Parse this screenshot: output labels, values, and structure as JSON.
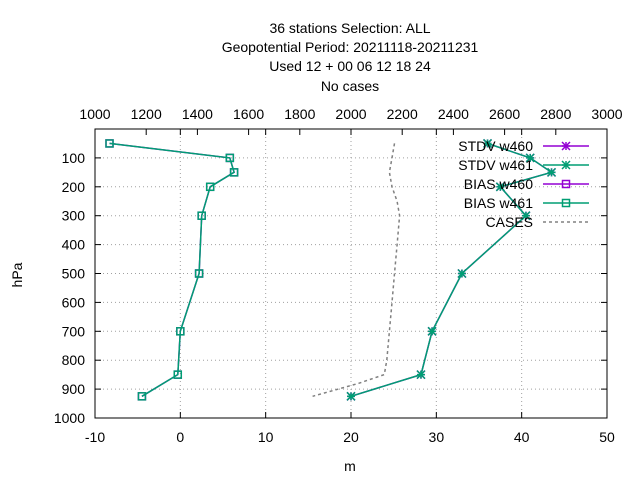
{
  "chart_data": {
    "type": "line",
    "title_lines": [
      "36 stations Selection: ALL",
      "Geopotential  Period: 20211118-20211231",
      "Used  12  + 00 06 12 18 24",
      "No cases"
    ],
    "xlabel": "m",
    "ylabel": "hPa",
    "xlim": [
      -10,
      50
    ],
    "x2lim": [
      1000,
      3000
    ],
    "ylim": [
      1000,
      0
    ],
    "x_ticks": [
      "-10",
      "0",
      "10",
      "20",
      "30",
      "40",
      "50"
    ],
    "x_tick_values": [
      -10,
      0,
      10,
      20,
      30,
      40,
      50
    ],
    "x2_ticks": [
      "1000",
      "1200",
      "1400",
      "1600",
      "1800",
      "2000",
      "2200",
      "2400",
      "2600",
      "2800",
      "3000"
    ],
    "x2_tick_values": [
      1000,
      1200,
      1400,
      1600,
      1800,
      2000,
      2200,
      2400,
      2600,
      2800,
      3000
    ],
    "y_ticks": [
      "100",
      "200",
      "300",
      "400",
      "500",
      "600",
      "700",
      "800",
      "900",
      "1000"
    ],
    "y_tick_values": [
      100,
      200,
      300,
      400,
      500,
      600,
      700,
      800,
      900,
      1000
    ],
    "grid": true,
    "legend_position": "top-right",
    "series": [
      {
        "name": "STDV w460",
        "axis": "x1",
        "color": "#9400d3",
        "marker": "star",
        "dash": false,
        "points": [
          [
            36.0,
            50
          ],
          [
            41.0,
            100
          ],
          [
            43.5,
            150
          ],
          [
            37.5,
            200
          ],
          [
            40.5,
            300
          ],
          [
            33.0,
            500
          ],
          [
            29.5,
            700
          ],
          [
            28.2,
            850
          ],
          [
            20.0,
            925
          ]
        ]
      },
      {
        "name": "STDV w461",
        "axis": "x1",
        "color": "#009e73",
        "marker": "star",
        "dash": false,
        "points": [
          [
            36.0,
            50
          ],
          [
            41.0,
            100
          ],
          [
            43.5,
            150
          ],
          [
            37.5,
            200
          ],
          [
            40.5,
            300
          ],
          [
            33.0,
            500
          ],
          [
            29.5,
            700
          ],
          [
            28.2,
            850
          ],
          [
            20.0,
            925
          ]
        ]
      },
      {
        "name": "BIAS w460",
        "axis": "x1",
        "color": "#9400d3",
        "marker": "square",
        "dash": false,
        "points": [
          [
            -8.3,
            50
          ],
          [
            5.8,
            100
          ],
          [
            6.3,
            150
          ],
          [
            3.5,
            200
          ],
          [
            2.5,
            300
          ],
          [
            2.2,
            500
          ],
          [
            0.0,
            700
          ],
          [
            -0.3,
            850
          ],
          [
            -4.5,
            925
          ]
        ]
      },
      {
        "name": "BIAS w461",
        "axis": "x1",
        "color": "#009e73",
        "marker": "square",
        "dash": false,
        "points": [
          [
            -8.3,
            50
          ],
          [
            5.8,
            100
          ],
          [
            6.3,
            150
          ],
          [
            3.5,
            200
          ],
          [
            2.5,
            300
          ],
          [
            2.2,
            500
          ],
          [
            0.0,
            700
          ],
          [
            -0.3,
            850
          ],
          [
            -4.5,
            925
          ]
        ]
      },
      {
        "name": "CASES",
        "axis": "x2",
        "color": "#808080",
        "marker": "none",
        "dash": true,
        "points": [
          [
            2170,
            50
          ],
          [
            2160,
            100
          ],
          [
            2150,
            150
          ],
          [
            2160,
            200
          ],
          [
            2180,
            250
          ],
          [
            2190,
            300
          ],
          [
            2180,
            400
          ],
          [
            2170,
            500
          ],
          [
            2160,
            600
          ],
          [
            2150,
            700
          ],
          [
            2140,
            800
          ],
          [
            2130,
            850
          ],
          [
            2030,
            880
          ],
          [
            1850,
            925
          ]
        ]
      }
    ]
  }
}
